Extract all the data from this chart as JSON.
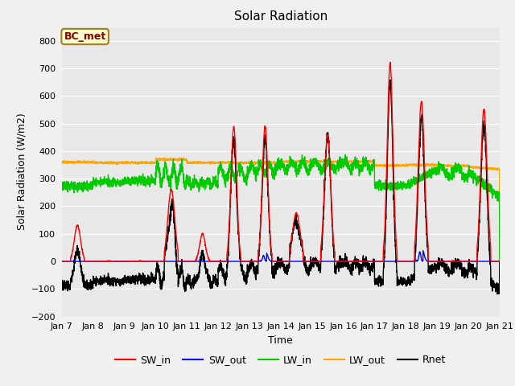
{
  "title": "Solar Radiation",
  "xlabel": "Time",
  "ylabel": "Solar Radiation (W/m2)",
  "ylim": [
    -200,
    850
  ],
  "yticks": [
    -200,
    -100,
    0,
    100,
    200,
    300,
    400,
    500,
    600,
    700,
    800
  ],
  "fig_bg": "#f0f0f0",
  "plot_bg": "#e8e8e8",
  "annotation_text": "BC_met",
  "annotation_color": "#8B0000",
  "annotation_bg": "#ffffcc",
  "annotation_edge": "#a08020",
  "legend_entries": [
    "SW_in",
    "SW_out",
    "LW_in",
    "LW_out",
    "Rnet"
  ],
  "line_colors": {
    "SW_in": "#ff0000",
    "SW_out": "#0000ff",
    "LW_in": "#00cc00",
    "LW_out": "#ffa500",
    "Rnet": "#000000"
  },
  "n_points": 3360,
  "lw": 1.0,
  "grid_color": "#ffffff",
  "tick_label_size": 8,
  "axis_label_size": 9,
  "title_size": 11
}
